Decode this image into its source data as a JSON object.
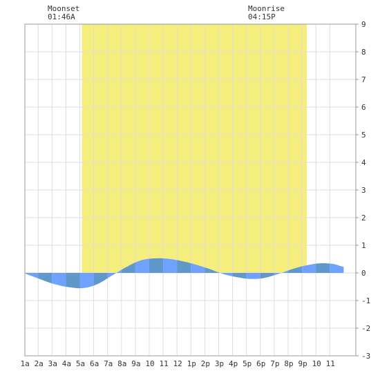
{
  "chart_data": {
    "type": "area",
    "title": "",
    "xlabel": "",
    "ylabel": "",
    "x_range_hours": [
      0,
      24
    ],
    "ylim": [
      -3,
      9
    ],
    "y_ticks": [
      -3,
      -2,
      -1,
      0,
      1,
      2,
      3,
      4,
      5,
      6,
      7,
      8,
      9
    ],
    "x_tick_labels": [
      "1a",
      "2a",
      "3a",
      "4a",
      "5a",
      "6a",
      "7a",
      "8a",
      "9a",
      "10",
      "11",
      "12",
      "1p",
      "2p",
      "3p",
      "4p",
      "5p",
      "6p",
      "7p",
      "8p",
      "9p",
      "10",
      "11"
    ],
    "grid": true,
    "daylight_window": {
      "start": "5:09A",
      "end": "9:21P",
      "start_hour": 5.15,
      "end_hour": 21.35
    },
    "series": [
      {
        "hour": [
          0,
          0.9,
          2.0,
          3.0,
          4.0,
          5.2,
          6.2,
          7.3,
          8.5,
          9.5,
          10.7,
          11.8,
          13.0,
          14.3,
          15.4,
          16.5,
          17.4,
          18.3,
          19.4,
          20.5,
          21.6,
          22.4,
          23.3,
          24
        ],
        "height": [
          0.12,
          0.0,
          -0.2,
          -0.38,
          -0.5,
          -0.55,
          -0.42,
          -0.1,
          0.25,
          0.47,
          0.53,
          0.48,
          0.35,
          0.15,
          -0.05,
          -0.17,
          -0.22,
          -0.18,
          -0.02,
          0.17,
          0.3,
          0.35,
          0.32,
          0.22
        ]
      }
    ],
    "colors": {
      "daylight": "#f6ee7c",
      "tide_light": "#6fa1ff",
      "tide_dark": "#6198cc",
      "grid": "#dddddd",
      "border": "#999999"
    },
    "annotations": {
      "moonset": {
        "title": "Moonset",
        "time": "01:46A"
      },
      "moonrise": {
        "title": "Moonrise",
        "time": "04:15P"
      }
    }
  }
}
